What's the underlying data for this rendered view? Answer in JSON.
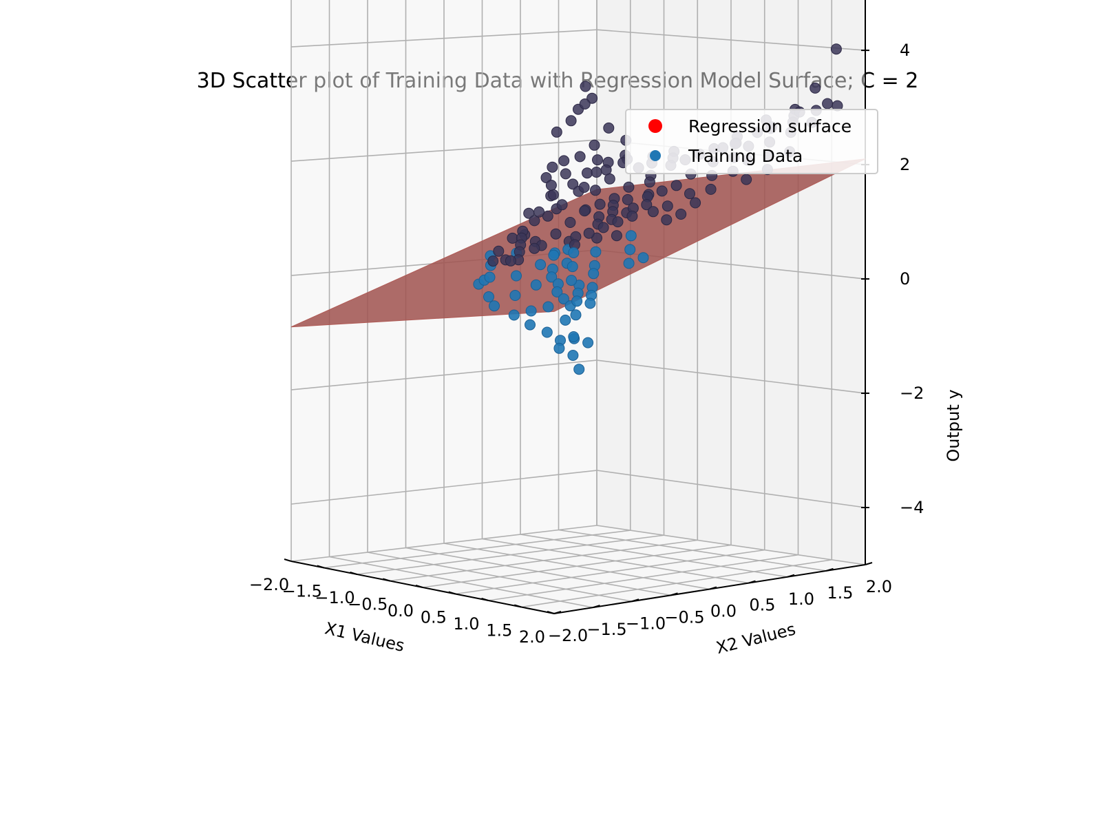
{
  "chart_data": {
    "type": "scatter",
    "subtype": "3d-scatter-with-surface",
    "title": "3D Scatter plot of Training Data with Regression Model Surface; C = 2",
    "xlabel": "X1 Values",
    "ylabel": "X2 Values",
    "zlabel": "Output y",
    "xlim": [
      -2.0,
      2.0
    ],
    "ylim": [
      -2.0,
      2.0
    ],
    "zlim": [
      -5,
      5
    ],
    "x_tick_labels": [
      "−2.0",
      "−1.5",
      "−1.0",
      "−0.5",
      "0.0",
      "0.5",
      "1.0",
      "1.5",
      "2.0"
    ],
    "y_tick_labels": [
      "−2.0",
      "−1.5",
      "−1.0",
      "−0.5",
      "0.0",
      "0.5",
      "1.0",
      "1.5",
      "2.0"
    ],
    "z_tick_labels": [
      "4",
      "2",
      "0",
      "−2",
      "−4"
    ],
    "legend": {
      "placement": "upper-right",
      "entries": [
        {
          "label": "Regression surface",
          "color": "#ff0000"
        },
        {
          "label": "Training Data",
          "color": "#1f77b4"
        }
      ]
    },
    "surface": {
      "color": "#a0524f",
      "corner_values": {
        "x1_-2_x2_-2": -0.9,
        "x1_-2_x2_2": 1.1,
        "x1_2_x2_-2": 0.1,
        "x1_2_x2_2": 2.1
      }
    },
    "series": [
      {
        "name": "Training Data",
        "color": "#1f77b4",
        "points": [
          [
            -0.9,
            0.1,
            0.6
          ],
          [
            -0.8,
            0.2,
            1.0
          ],
          [
            -0.85,
            -0.05,
            0.3
          ],
          [
            -0.7,
            0.3,
            1.3
          ],
          [
            -0.75,
            0.25,
            1.6
          ],
          [
            -0.6,
            0.35,
            1.9
          ],
          [
            -0.65,
            0.3,
            2.4
          ],
          [
            -0.55,
            0.4,
            2.6
          ],
          [
            -0.5,
            0.45,
            2.8
          ],
          [
            -0.45,
            0.5,
            3.2
          ],
          [
            -0.4,
            0.45,
            2.9
          ],
          [
            -0.35,
            0.5,
            3.0
          ],
          [
            -0.6,
            0.2,
            1.8
          ],
          [
            -0.5,
            0.1,
            1.5
          ],
          [
            -0.4,
            0.2,
            1.7
          ],
          [
            -0.3,
            0.3,
            2.0
          ],
          [
            -0.2,
            0.4,
            2.2
          ],
          [
            -0.1,
            0.5,
            2.5
          ],
          [
            0.0,
            0.6,
            1.9
          ],
          [
            0.1,
            0.55,
            2.3
          ],
          [
            -0.95,
            -0.3,
            0.1
          ],
          [
            -0.9,
            -0.5,
            -0.2
          ],
          [
            -0.8,
            -0.4,
            0.2
          ],
          [
            -0.7,
            -0.6,
            -0.1
          ],
          [
            -0.6,
            -0.5,
            0.4
          ],
          [
            -0.5,
            -0.7,
            0.0
          ],
          [
            -0.4,
            -0.8,
            -0.3
          ],
          [
            -0.3,
            -0.6,
            0.3
          ],
          [
            -0.2,
            -0.9,
            -0.4
          ],
          [
            -0.1,
            -0.7,
            0.1
          ],
          [
            0.0,
            -0.8,
            -0.2
          ],
          [
            0.1,
            -0.9,
            -0.5
          ],
          [
            0.2,
            -0.7,
            0.0
          ],
          [
            0.3,
            -0.85,
            -0.4
          ],
          [
            0.4,
            -0.95,
            -0.6
          ],
          [
            0.5,
            -0.8,
            -0.3
          ],
          [
            0.6,
            -0.9,
            -0.7
          ],
          [
            0.7,
            -0.75,
            -0.5
          ],
          [
            0.8,
            -0.9,
            -0.8
          ],
          [
            0.9,
            -1.0,
            -0.9
          ],
          [
            1.0,
            -0.9,
            -0.7
          ],
          [
            1.1,
            -0.8,
            -0.8
          ],
          [
            0.95,
            -0.85,
            -0.75
          ],
          [
            1.05,
            -0.95,
            -1.0
          ],
          [
            1.2,
            -1.0,
            -1.2
          ],
          [
            -0.3,
            -0.2,
            0.5
          ],
          [
            -0.2,
            -0.1,
            0.7
          ],
          [
            -0.1,
            0.0,
            0.9
          ],
          [
            0.0,
            0.1,
            1.1
          ],
          [
            0.1,
            0.2,
            1.0
          ],
          [
            0.2,
            0.1,
            0.9
          ],
          [
            0.3,
            0.0,
            0.7
          ],
          [
            0.4,
            -0.1,
            0.5
          ],
          [
            0.5,
            -0.2,
            0.3
          ],
          [
            0.6,
            -0.3,
            0.2
          ],
          [
            0.7,
            -0.4,
            0.0
          ],
          [
            0.8,
            -0.5,
            -0.1
          ],
          [
            0.0,
            -0.3,
            0.4
          ],
          [
            0.1,
            -0.4,
            0.2
          ],
          [
            0.2,
            -0.5,
            0.1
          ],
          [
            0.3,
            -0.3,
            0.5
          ],
          [
            0.4,
            -0.4,
            0.3
          ],
          [
            0.5,
            -0.5,
            0.1
          ],
          [
            0.2,
            -0.2,
            0.6
          ],
          [
            0.3,
            -0.1,
            0.8
          ],
          [
            0.4,
            0.0,
            0.9
          ],
          [
            0.5,
            0.1,
            1.0
          ],
          [
            0.6,
            0.2,
            1.1
          ],
          [
            0.7,
            0.1,
            0.8
          ],
          [
            0.8,
            0.0,
            0.6
          ],
          [
            0.9,
            -0.1,
            0.4
          ],
          [
            1.0,
            0.0,
            0.5
          ],
          [
            0.6,
            0.4,
            1.4
          ],
          [
            0.7,
            0.5,
            1.5
          ],
          [
            0.8,
            0.6,
            1.6
          ],
          [
            0.9,
            0.7,
            1.8
          ],
          [
            1.0,
            0.6,
            1.5
          ],
          [
            0.5,
            0.5,
            1.4
          ],
          [
            0.4,
            0.6,
            1.6
          ],
          [
            0.3,
            0.7,
            1.7
          ],
          [
            0.6,
            0.7,
            1.9
          ],
          [
            0.7,
            0.8,
            2.0
          ],
          [
            0.8,
            0.9,
            2.1
          ],
          [
            0.9,
            1.0,
            2.2
          ],
          [
            1.0,
            0.9,
            2.0
          ],
          [
            1.1,
            0.8,
            1.8
          ],
          [
            1.2,
            1.0,
            2.1
          ],
          [
            1.1,
            1.1,
            2.3
          ],
          [
            1.3,
            0.9,
            1.9
          ],
          [
            1.2,
            0.7,
            1.6
          ],
          [
            1.3,
            1.1,
            2.3
          ],
          [
            1.4,
            1.0,
            2.1
          ],
          [
            1.5,
            1.2,
            2.4
          ],
          [
            1.4,
            1.3,
            2.6
          ],
          [
            1.5,
            0.9,
            1.8
          ],
          [
            1.6,
            1.1,
            2.2
          ],
          [
            1.7,
            1.3,
            2.6
          ],
          [
            1.6,
            1.5,
            2.9
          ],
          [
            1.8,
            1.2,
            2.3
          ],
          [
            1.7,
            1.0,
            2.0
          ],
          [
            1.9,
            1.4,
            2.8
          ],
          [
            1.5,
            1.5,
            2.7
          ],
          [
            1.3,
            1.4,
            2.6
          ],
          [
            1.2,
            1.3,
            2.5
          ],
          [
            1.1,
            1.5,
            2.7
          ],
          [
            1.0,
            1.2,
            2.3
          ],
          [
            0.9,
            1.3,
            2.4
          ],
          [
            0.8,
            1.2,
            2.2
          ],
          [
            1.6,
            1.7,
            3.3
          ],
          [
            1.8,
            1.8,
            4.0
          ],
          [
            1.9,
            1.6,
            3.1
          ],
          [
            1.7,
            1.9,
            3.0
          ],
          [
            1.5,
            1.8,
            2.9
          ],
          [
            1.4,
            1.6,
            2.8
          ],
          [
            1.3,
            1.7,
            2.9
          ],
          [
            0.2,
            0.3,
            1.2
          ],
          [
            0.3,
            0.4,
            1.3
          ],
          [
            0.4,
            0.3,
            1.1
          ],
          [
            0.1,
            0.4,
            1.3
          ],
          [
            0.0,
            0.3,
            1.2
          ],
          [
            -0.1,
            0.2,
            1.1
          ],
          [
            0.2,
            0.5,
            1.5
          ],
          [
            0.5,
            0.3,
            1.2
          ],
          [
            0.6,
            0.0,
            0.8
          ],
          [
            0.7,
            0.3,
            1.3
          ],
          [
            0.8,
            0.3,
            1.2
          ],
          [
            0.9,
            0.4,
            1.3
          ],
          [
            1.0,
            0.3,
            1.1
          ],
          [
            1.1,
            0.4,
            1.2
          ],
          [
            1.2,
            0.5,
            1.4
          ],
          [
            -0.2,
            0.6,
            1.6
          ],
          [
            -0.3,
            0.5,
            1.4
          ],
          [
            -0.4,
            0.6,
            1.7
          ],
          [
            -0.5,
            0.7,
            1.9
          ],
          [
            -0.2,
            0.8,
            2.0
          ],
          [
            0.0,
            0.8,
            1.8
          ],
          [
            0.1,
            0.9,
            2.0
          ],
          [
            0.2,
            0.8,
            1.9
          ],
          [
            0.3,
            1.0,
            2.1
          ],
          [
            0.4,
            0.9,
            2.0
          ],
          [
            -1.0,
            0.6,
            1.0
          ],
          [
            -1.1,
            0.4,
            0.8
          ],
          [
            -1.2,
            0.7,
            1.2
          ],
          [
            -1.3,
            0.5,
            0.9
          ],
          [
            -1.1,
            0.9,
            1.4
          ],
          [
            -0.9,
            0.8,
            1.3
          ],
          [
            -1.0,
            1.0,
            1.6
          ],
          [
            -0.8,
            1.1,
            1.8
          ],
          [
            -1.2,
            0.2,
            0.5
          ],
          [
            -1.3,
            0.0,
            0.2
          ],
          [
            -0.7,
            0.7,
            1.4
          ],
          [
            -0.6,
            0.9,
            1.7
          ],
          [
            -0.4,
            1.0,
            1.9
          ],
          [
            -0.9,
            0.4,
            0.9
          ],
          [
            -0.8,
            0.5,
            1.1
          ],
          [
            0.1,
            -0.1,
            0.7
          ],
          [
            0.0,
            -0.1,
            0.6
          ],
          [
            -0.1,
            -0.2,
            0.4
          ],
          [
            -0.2,
            -0.3,
            0.2
          ],
          [
            0.1,
            -0.2,
            0.5
          ],
          [
            0.2,
            -0.3,
            0.3
          ],
          [
            0.3,
            -0.5,
            0.0
          ],
          [
            0.4,
            -0.6,
            -0.1
          ],
          [
            0.5,
            -0.6,
            -0.2
          ],
          [
            0.6,
            -0.6,
            -0.3
          ],
          [
            0.7,
            -0.6,
            -0.2
          ],
          [
            0.8,
            -0.7,
            -0.4
          ],
          [
            0.9,
            -0.6,
            -0.2
          ],
          [
            0.6,
            -0.5,
            -0.1
          ],
          [
            0.5,
            -0.4,
            0.0
          ],
          [
            -0.6,
            -0.2,
            0.6
          ],
          [
            -0.5,
            -0.3,
            0.5
          ],
          [
            -0.4,
            -0.4,
            0.4
          ],
          [
            -0.3,
            -0.5,
            0.3
          ],
          [
            -0.7,
            -0.1,
            0.7
          ],
          [
            -0.45,
            -0.15,
            0.55
          ],
          [
            -0.55,
            -0.45,
            0.25
          ],
          [
            -0.35,
            -0.25,
            0.45
          ],
          [
            0.25,
            0.25,
            1.1
          ],
          [
            0.35,
            0.15,
            1.0
          ]
        ]
      }
    ]
  }
}
